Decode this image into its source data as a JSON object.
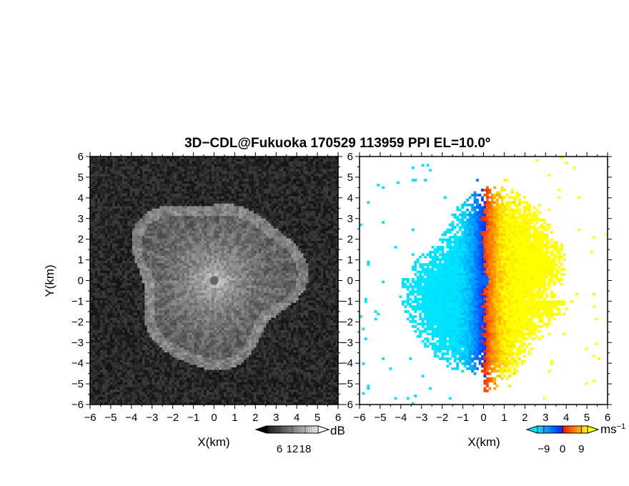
{
  "title": "3D−CDL@Fukuoka 170529 113959 PPI EL=10.0º",
  "chart_data": [
    {
      "type": "heatmap",
      "name": "reflectivity-panel",
      "xlabel": "X(km)",
      "ylabel": "Y(km)",
      "xlim": [
        -6,
        6
      ],
      "ylim": [
        -6,
        6
      ],
      "xticks": [
        "−6",
        "−5",
        "−4",
        "−3",
        "−2",
        "−1",
        "0",
        "1",
        "2",
        "3",
        "4",
        "5",
        "6"
      ],
      "yticks": [
        "−6",
        "−5",
        "−4",
        "−3",
        "−2",
        "−1",
        "0",
        "1",
        "2",
        "3",
        "4",
        "5",
        "6"
      ],
      "colorscale": "grayscale",
      "colorbar": {
        "unit": "dB",
        "ticks": [
          "6",
          "12",
          "18"
        ],
        "range": [
          0,
          24
        ]
      }
    },
    {
      "type": "heatmap",
      "name": "doppler-velocity-panel",
      "xlabel": "X(km)",
      "ylabel": "",
      "xlim": [
        -6,
        6
      ],
      "ylim": [
        -6,
        6
      ],
      "xticks": [
        "−6",
        "−5",
        "−4",
        "−3",
        "−2",
        "−1",
        "0",
        "1",
        "2",
        "3",
        "4",
        "5",
        "6"
      ],
      "yticks": [
        "−6",
        "−5",
        "−4",
        "−3",
        "−2",
        "−1",
        "0",
        "1",
        "2",
        "3",
        "4",
        "5",
        "6"
      ],
      "colorscale": "cyan-blue-red-yellow",
      "colors": {
        "neg_far": "#00e5ff",
        "neg_near": "#0033ff",
        "pos_near": "#ff2200",
        "pos_far": "#ffff00"
      },
      "colorbar": {
        "unit": "ms",
        "unit_exponent": "−1",
        "ticks": [
          "−9",
          "0",
          "9"
        ],
        "range": [
          -12,
          12
        ]
      }
    }
  ]
}
